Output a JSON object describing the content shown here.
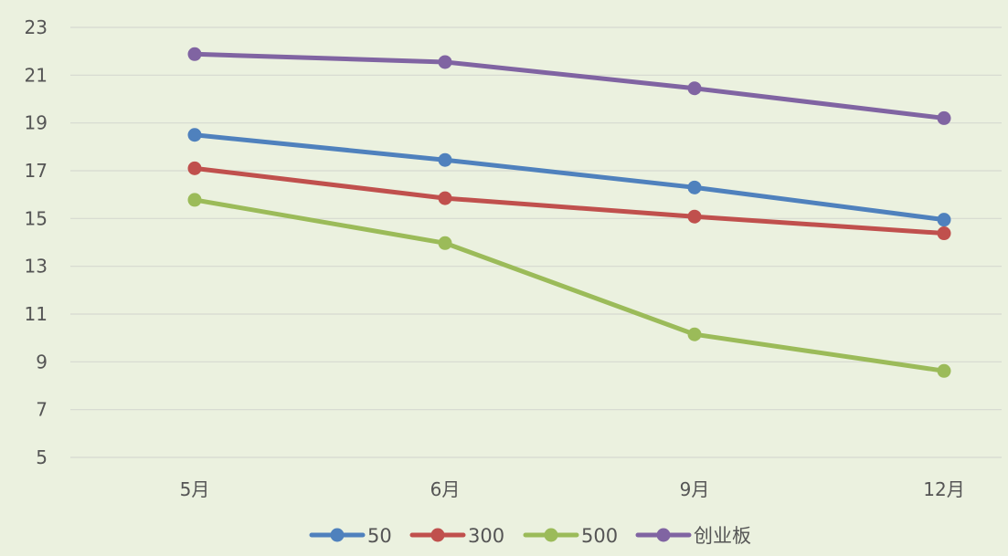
{
  "chart_data": {
    "type": "line",
    "categories": [
      "5月",
      "6月",
      "9月",
      "12月"
    ],
    "ylim": [
      5,
      23
    ],
    "y_ticks": [
      5,
      7,
      9,
      11,
      13,
      15,
      17,
      19,
      21,
      23
    ],
    "grid": "horizontal",
    "legend_position": "bottom",
    "series": [
      {
        "name": "50",
        "color": "#4f81bd",
        "values": [
          18.5,
          17.45,
          16.3,
          14.95
        ]
      },
      {
        "name": "300",
        "color": "#c0504d",
        "values": [
          17.1,
          15.85,
          15.08,
          14.38
        ]
      },
      {
        "name": "500",
        "color": "#9bbb59",
        "values": [
          15.78,
          13.97,
          10.15,
          8.62
        ]
      },
      {
        "name": "创业板",
        "color": "#8064a2",
        "values": [
          21.88,
          21.55,
          20.45,
          19.2
        ]
      }
    ]
  }
}
